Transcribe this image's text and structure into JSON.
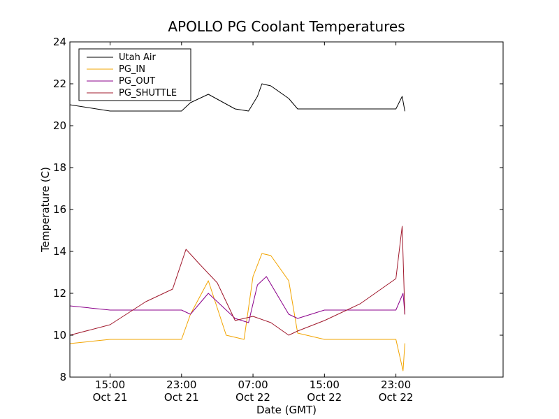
{
  "chart_data": {
    "type": "line",
    "title": "APOLLO PG Coolant Temperatures",
    "xlabel": "Date (GMT)",
    "ylabel": "Temperature (C)",
    "xlim_hours": [
      10.5,
      59.0
    ],
    "ylim": [
      8,
      24
    ],
    "y_ticks": [
      {
        "value": 8,
        "label": "8"
      },
      {
        "value": 10,
        "label": "10"
      },
      {
        "value": 12,
        "label": "12"
      },
      {
        "value": 14,
        "label": "14"
      },
      {
        "value": 16,
        "label": "16"
      },
      {
        "value": 18,
        "label": "18"
      },
      {
        "value": 20,
        "label": "20"
      },
      {
        "value": 22,
        "label": "22"
      },
      {
        "value": 24,
        "label": "24"
      }
    ],
    "x_ticks": [
      {
        "hour": 15,
        "time": "15:00",
        "date": "Oct 21"
      },
      {
        "hour": 23,
        "time": "23:00",
        "date": "Oct 21"
      },
      {
        "hour": 31,
        "time": "07:00",
        "date": "Oct 22"
      },
      {
        "hour": 39,
        "time": "15:00",
        "date": "Oct 22"
      },
      {
        "hour": 47,
        "time": "23:00",
        "date": "Oct 22"
      }
    ],
    "grid": false,
    "legend_position": "top-left",
    "series": [
      {
        "name": "Utah Air",
        "color": "#000000",
        "points": [
          [
            10.5,
            21.0
          ],
          [
            15.0,
            20.7
          ],
          [
            23.0,
            20.7
          ],
          [
            24.0,
            21.1
          ],
          [
            26.0,
            21.5
          ],
          [
            29.0,
            20.8
          ],
          [
            30.5,
            20.7
          ],
          [
            31.5,
            21.4
          ],
          [
            32.0,
            22.0
          ],
          [
            33.0,
            21.9
          ],
          [
            35.0,
            21.3
          ],
          [
            36.0,
            20.8
          ],
          [
            39.0,
            20.8
          ],
          [
            47.0,
            20.8
          ],
          [
            47.7,
            21.4
          ],
          [
            48.0,
            20.7
          ]
        ]
      },
      {
        "name": "PG_IN",
        "color": "#f2a400",
        "points": [
          [
            10.5,
            9.6
          ],
          [
            15.0,
            9.8
          ],
          [
            23.0,
            9.8
          ],
          [
            24.0,
            11.0
          ],
          [
            26.0,
            12.6
          ],
          [
            28.0,
            10.0
          ],
          [
            30.0,
            9.8
          ],
          [
            31.0,
            12.8
          ],
          [
            32.0,
            13.9
          ],
          [
            33.0,
            13.8
          ],
          [
            35.0,
            12.6
          ],
          [
            36.0,
            10.1
          ],
          [
            39.0,
            9.8
          ],
          [
            47.0,
            9.8
          ],
          [
            47.8,
            8.3
          ],
          [
            48.0,
            9.6
          ]
        ]
      },
      {
        "name": "PG_OUT",
        "color": "#8b008b",
        "points": [
          [
            10.5,
            11.4
          ],
          [
            15.0,
            11.2
          ],
          [
            23.0,
            11.2
          ],
          [
            24.0,
            11.0
          ],
          [
            26.0,
            12.0
          ],
          [
            29.0,
            10.8
          ],
          [
            30.5,
            10.6
          ],
          [
            31.5,
            12.4
          ],
          [
            32.5,
            12.8
          ],
          [
            35.0,
            11.0
          ],
          [
            36.0,
            10.8
          ],
          [
            39.0,
            11.2
          ],
          [
            47.0,
            11.2
          ],
          [
            47.8,
            12.0
          ],
          [
            48.0,
            11.0
          ]
        ]
      },
      {
        "name": "PG_SHUTTLE",
        "color": "#a0182c",
        "points": [
          [
            10.5,
            10.0
          ],
          [
            15.0,
            10.5
          ],
          [
            19.0,
            11.6
          ],
          [
            22.0,
            12.2
          ],
          [
            23.5,
            14.1
          ],
          [
            25.0,
            13.4
          ],
          [
            27.0,
            12.5
          ],
          [
            29.0,
            10.7
          ],
          [
            31.0,
            10.9
          ],
          [
            33.0,
            10.6
          ],
          [
            35.0,
            10.0
          ],
          [
            36.0,
            10.2
          ],
          [
            39.0,
            10.7
          ],
          [
            43.0,
            11.5
          ],
          [
            47.0,
            12.7
          ],
          [
            47.7,
            15.2
          ],
          [
            48.0,
            11.0
          ]
        ]
      }
    ]
  }
}
